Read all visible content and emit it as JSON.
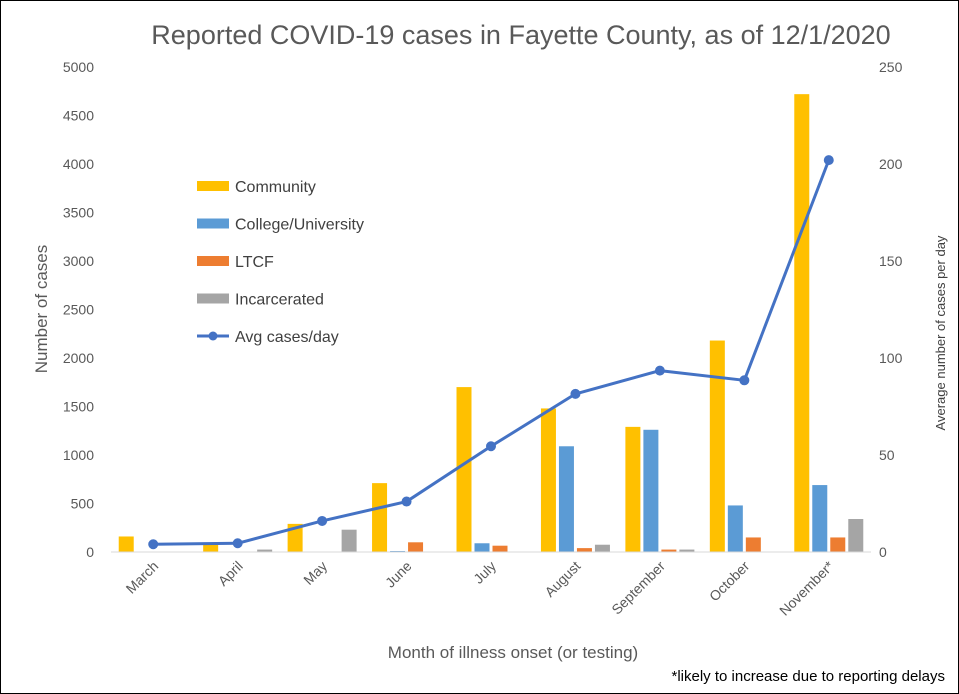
{
  "chart_data": {
    "type": "bar",
    "title": "Reported COVID-19 cases in Fayette County, as of 12/1/2020",
    "xlabel": "Month of illness onset (or testing)",
    "ylabel": "Number of cases",
    "y2label": "Average number of cases per day",
    "ylim": [
      0,
      5000
    ],
    "y2lim": [
      0,
      250
    ],
    "yticks": [
      "0",
      "500",
      "1000",
      "1500",
      "2000",
      "2500",
      "3000",
      "3500",
      "4000",
      "4500",
      "5000"
    ],
    "y2ticks": [
      "0",
      "50",
      "100",
      "150",
      "200",
      "250"
    ],
    "categories": [
      "March",
      "April",
      "May",
      "June",
      "July",
      "August",
      "September",
      "October",
      "November*"
    ],
    "series": [
      {
        "name": "Community",
        "type": "bar",
        "axis": "left",
        "color": "#FFC000",
        "values": [
          160,
          90,
          290,
          710,
          1700,
          1480,
          1290,
          2180,
          4720
        ]
      },
      {
        "name": "College/University",
        "type": "bar",
        "axis": "left",
        "color": "#5B9BD5",
        "values": [
          5,
          5,
          5,
          10,
          90,
          1090,
          1260,
          480,
          690
        ]
      },
      {
        "name": "LTCF",
        "type": "bar",
        "axis": "left",
        "color": "#ED7D31",
        "values": [
          5,
          5,
          5,
          100,
          65,
          40,
          25,
          150,
          150
        ]
      },
      {
        "name": "Incarcerated",
        "type": "bar",
        "axis": "left",
        "color": "#A5A5A5",
        "values": [
          5,
          25,
          230,
          5,
          5,
          75,
          25,
          5,
          340
        ]
      },
      {
        "name": "Avg cases/day",
        "type": "line",
        "axis": "right",
        "color": "#4472C4",
        "values": [
          4,
          4.5,
          16,
          26,
          54.5,
          81.5,
          93.5,
          88.5,
          202
        ]
      }
    ],
    "legend_position": "upper-left inside plot",
    "grid": false,
    "note": "*likely to increase due to reporting delays"
  }
}
